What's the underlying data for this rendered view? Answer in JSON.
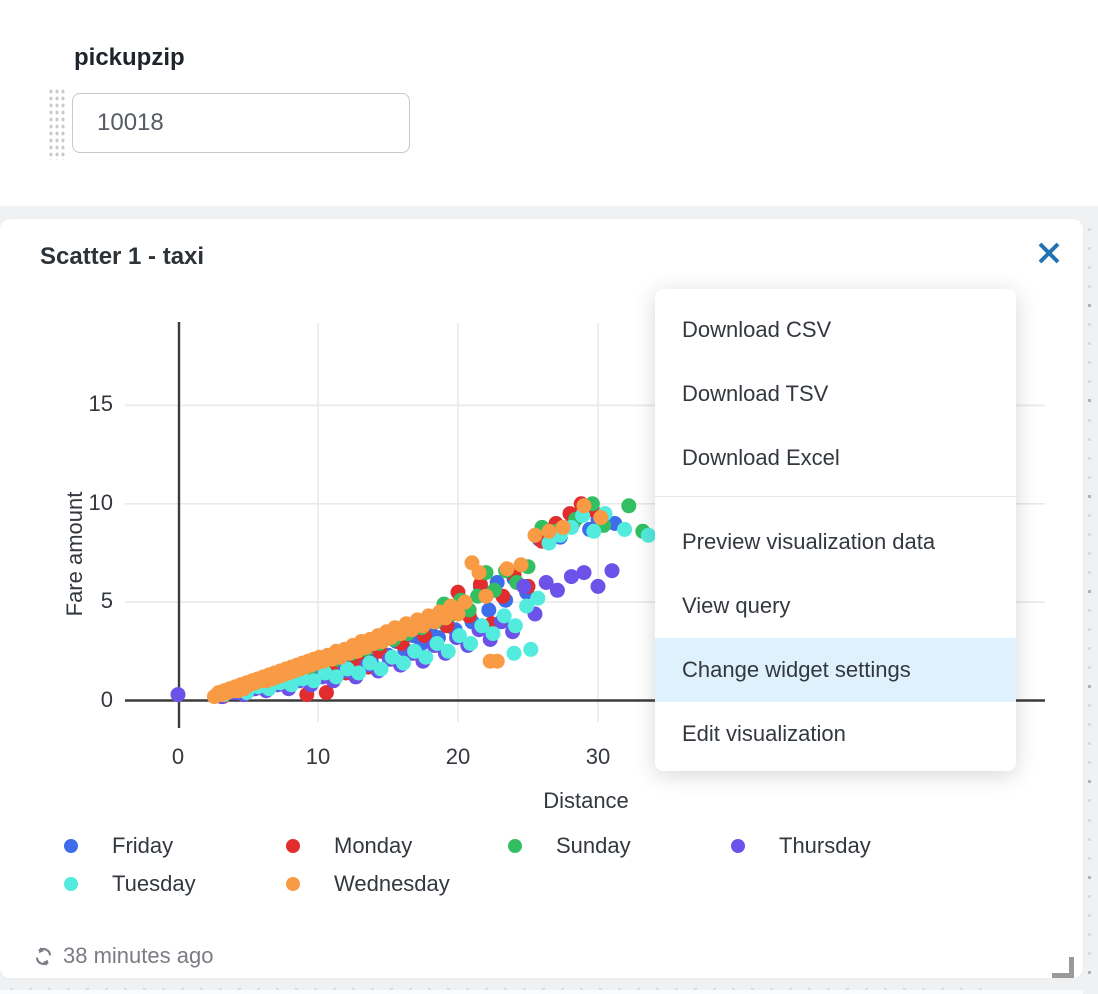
{
  "parameters": {
    "label": "pickupzip",
    "value": "10018"
  },
  "widget": {
    "title": "Scatter 1 - taxi",
    "refresh_status": "38 minutes ago",
    "accent_color": "#2272B4"
  },
  "menu": {
    "highlight_color": "#DFF1FC",
    "divider_after_index": 2,
    "items": [
      {
        "label": "Download CSV",
        "highlighted": false
      },
      {
        "label": "Download TSV",
        "highlighted": false
      },
      {
        "label": "Download Excel",
        "highlighted": false
      },
      {
        "label": "Preview visualization data",
        "highlighted": false
      },
      {
        "label": "View query",
        "highlighted": false
      },
      {
        "label": "Change widget settings",
        "highlighted": true
      },
      {
        "label": "Edit visualization",
        "highlighted": false
      }
    ]
  },
  "chart_data": {
    "type": "scatter",
    "title": "Scatter 1 - taxi",
    "xlabel": "Distance",
    "ylabel": "Fare amount",
    "xticks": [
      0,
      10,
      20,
      30
    ],
    "yticks": [
      0,
      5,
      10,
      15
    ],
    "xlim": [
      -2,
      62
    ],
    "ylim": [
      -1.4,
      19.2
    ],
    "grid": true,
    "legend_position": "bottom",
    "series": [
      {
        "name": "Friday",
        "color": "#3D6DEB",
        "points": [
          [
            3.0,
            0.3
          ],
          [
            3.6,
            0.5
          ],
          [
            4.2,
            0.4
          ],
          [
            4.8,
            0.7
          ],
          [
            5.4,
            0.6
          ],
          [
            6.0,
            0.9
          ],
          [
            6.6,
            0.8
          ],
          [
            7.2,
            1.1
          ],
          [
            7.8,
            0.9
          ],
          [
            8.4,
            1.3
          ],
          [
            9.0,
            1.1
          ],
          [
            9.6,
            1.5
          ],
          [
            10.2,
            1.3
          ],
          [
            10.8,
            1.8
          ],
          [
            11.4,
            1.5
          ],
          [
            12.0,
            2.1
          ],
          [
            12.6,
            1.8
          ],
          [
            13.2,
            2.4
          ],
          [
            13.8,
            2.0
          ],
          [
            14.4,
            2.7
          ],
          [
            15.0,
            2.3
          ],
          [
            15.6,
            3.0
          ],
          [
            16.2,
            2.6
          ],
          [
            16.8,
            3.3
          ],
          [
            17.4,
            2.9
          ],
          [
            18.0,
            3.7
          ],
          [
            18.6,
            3.2
          ],
          [
            19.2,
            4.1
          ],
          [
            19.8,
            3.6
          ],
          [
            20.4,
            4.5
          ],
          [
            21.0,
            4.0
          ],
          [
            21.6,
            5.8
          ],
          [
            22.2,
            4.6
          ],
          [
            22.8,
            6.0
          ],
          [
            23.4,
            5.1
          ],
          [
            24.0,
            6.2
          ],
          [
            24.9,
            5.5
          ],
          [
            25.8,
            8.2
          ],
          [
            26.4,
            8.5
          ],
          [
            27.3,
            8.3
          ],
          [
            28.2,
            9.0
          ],
          [
            29.4,
            8.7
          ],
          [
            30.0,
            9.2
          ],
          [
            31.2,
            9.0
          ]
        ]
      },
      {
        "name": "Monday",
        "color": "#E12D2D",
        "points": [
          [
            3.2,
            0.2
          ],
          [
            4.0,
            0.5
          ],
          [
            4.8,
            0.4
          ],
          [
            5.6,
            0.8
          ],
          [
            6.4,
            0.6
          ],
          [
            7.2,
            1.0
          ],
          [
            8.0,
            0.8
          ],
          [
            8.8,
            1.2
          ],
          [
            9.2,
            0.3
          ],
          [
            9.6,
            1.0
          ],
          [
            10.6,
            0.4
          ],
          [
            11.2,
            1.7
          ],
          [
            12.0,
            1.4
          ],
          [
            12.8,
            2.1
          ],
          [
            13.6,
            1.7
          ],
          [
            14.4,
            2.5
          ],
          [
            15.2,
            2.1
          ],
          [
            16.0,
            2.9
          ],
          [
            16.8,
            2.4
          ],
          [
            17.6,
            3.3
          ],
          [
            18.4,
            2.8
          ],
          [
            19.2,
            3.8
          ],
          [
            20.0,
            5.5
          ],
          [
            20.8,
            4.3
          ],
          [
            21.6,
            5.9
          ],
          [
            22.4,
            3.9
          ],
          [
            23.2,
            5.3
          ],
          [
            24.0,
            6.4
          ],
          [
            25.0,
            5.8
          ],
          [
            26.0,
            8.1
          ],
          [
            27.0,
            9.0
          ],
          [
            28.0,
            9.5
          ],
          [
            28.8,
            10.0
          ],
          [
            29.6,
            9.7
          ]
        ]
      },
      {
        "name": "Sunday",
        "color": "#32BF61",
        "points": [
          [
            3.4,
            0.4
          ],
          [
            4.4,
            0.6
          ],
          [
            5.4,
            0.8
          ],
          [
            6.4,
            1.0
          ],
          [
            7.4,
            1.2
          ],
          [
            8.4,
            1.4
          ],
          [
            9.4,
            1.6
          ],
          [
            10.4,
            1.9
          ],
          [
            11.4,
            2.1
          ],
          [
            12.4,
            2.4
          ],
          [
            13.4,
            2.6
          ],
          [
            14.4,
            2.9
          ],
          [
            15.4,
            3.1
          ],
          [
            16.4,
            3.4
          ],
          [
            17.4,
            3.7
          ],
          [
            18.4,
            4.0
          ],
          [
            19.0,
            4.9
          ],
          [
            19.6,
            4.4
          ],
          [
            20.2,
            5.1
          ],
          [
            20.8,
            4.6
          ],
          [
            21.4,
            5.3
          ],
          [
            22.0,
            6.5
          ],
          [
            22.6,
            5.6
          ],
          [
            23.4,
            6.6
          ],
          [
            24.2,
            6.0
          ],
          [
            25.0,
            6.8
          ],
          [
            26.0,
            8.8
          ],
          [
            27.0,
            8.6
          ],
          [
            28.4,
            9.2
          ],
          [
            29.6,
            10.0
          ],
          [
            30.4,
            8.9
          ],
          [
            32.2,
            9.9
          ],
          [
            33.2,
            8.6
          ]
        ]
      },
      {
        "name": "Thursday",
        "color": "#6C52E9",
        "points": [
          [
            0.0,
            0.3
          ],
          [
            3.1,
            0.2
          ],
          [
            3.9,
            0.4
          ],
          [
            4.7,
            0.3
          ],
          [
            5.5,
            0.6
          ],
          [
            6.3,
            0.5
          ],
          [
            7.1,
            0.8
          ],
          [
            7.9,
            0.6
          ],
          [
            8.7,
            1.0
          ],
          [
            9.5,
            0.8
          ],
          [
            10.3,
            1.2
          ],
          [
            11.1,
            1.0
          ],
          [
            11.9,
            1.5
          ],
          [
            12.7,
            1.2
          ],
          [
            13.5,
            1.8
          ],
          [
            14.3,
            1.5
          ],
          [
            15.1,
            2.1
          ],
          [
            15.9,
            1.8
          ],
          [
            16.7,
            2.4
          ],
          [
            17.5,
            2.0
          ],
          [
            18.3,
            2.8
          ],
          [
            19.1,
            2.4
          ],
          [
            19.9,
            3.2
          ],
          [
            20.7,
            2.8
          ],
          [
            21.5,
            3.6
          ],
          [
            22.3,
            3.1
          ],
          [
            23.1,
            4.0
          ],
          [
            23.9,
            3.5
          ],
          [
            24.7,
            5.8
          ],
          [
            25.5,
            4.4
          ],
          [
            26.3,
            6.0
          ],
          [
            27.1,
            5.6
          ],
          [
            28.1,
            6.3
          ],
          [
            29.0,
            6.5
          ],
          [
            30.0,
            5.8
          ],
          [
            31.0,
            6.6
          ]
        ]
      },
      {
        "name": "Tuesday",
        "color": "#52EBDE",
        "points": [
          [
            3.3,
            0.3
          ],
          [
            4.1,
            0.5
          ],
          [
            4.9,
            0.4
          ],
          [
            5.7,
            0.7
          ],
          [
            6.5,
            0.6
          ],
          [
            7.3,
            0.9
          ],
          [
            8.1,
            0.8
          ],
          [
            8.9,
            1.1
          ],
          [
            9.7,
            1.0
          ],
          [
            10.5,
            1.4
          ],
          [
            11.3,
            1.2
          ],
          [
            12.1,
            1.6
          ],
          [
            12.9,
            1.4
          ],
          [
            13.7,
            1.9
          ],
          [
            14.5,
            1.6
          ],
          [
            15.3,
            2.2
          ],
          [
            16.1,
            1.9
          ],
          [
            16.9,
            2.5
          ],
          [
            17.7,
            2.2
          ],
          [
            18.5,
            2.9
          ],
          [
            19.3,
            2.5
          ],
          [
            20.1,
            3.3
          ],
          [
            20.9,
            2.9
          ],
          [
            21.7,
            3.8
          ],
          [
            22.5,
            3.4
          ],
          [
            23.3,
            4.3
          ],
          [
            24.0,
            2.4
          ],
          [
            24.1,
            3.8
          ],
          [
            24.9,
            4.8
          ],
          [
            25.2,
            2.6
          ],
          [
            25.7,
            5.2
          ],
          [
            26.5,
            8.0
          ],
          [
            27.3,
            8.4
          ],
          [
            28.1,
            8.8
          ],
          [
            28.9,
            9.4
          ],
          [
            29.7,
            8.6
          ],
          [
            30.5,
            9.5
          ],
          [
            31.9,
            8.7
          ],
          [
            33.6,
            8.4
          ]
        ]
      },
      {
        "name": "Wednesday",
        "color": "#F99B45",
        "points": [
          [
            2.6,
            0.2
          ],
          [
            2.9,
            0.4
          ],
          [
            3.1,
            0.3
          ],
          [
            3.3,
            0.5
          ],
          [
            3.5,
            0.4
          ],
          [
            3.7,
            0.6
          ],
          [
            3.9,
            0.5
          ],
          [
            4.1,
            0.7
          ],
          [
            4.3,
            0.5
          ],
          [
            4.5,
            0.8
          ],
          [
            4.7,
            0.6
          ],
          [
            4.9,
            0.9
          ],
          [
            5.1,
            0.8
          ],
          [
            5.3,
            1.0
          ],
          [
            5.5,
            0.9
          ],
          [
            5.7,
            1.1
          ],
          [
            5.9,
            1.0
          ],
          [
            6.1,
            1.2
          ],
          [
            6.3,
            1.0
          ],
          [
            6.5,
            1.3
          ],
          [
            6.7,
            1.1
          ],
          [
            6.9,
            1.4
          ],
          [
            7.1,
            1.2
          ],
          [
            7.3,
            1.5
          ],
          [
            7.5,
            1.3
          ],
          [
            7.7,
            1.6
          ],
          [
            7.9,
            1.4
          ],
          [
            8.1,
            1.7
          ],
          [
            8.3,
            1.5
          ],
          [
            8.5,
            1.8
          ],
          [
            8.7,
            1.6
          ],
          [
            8.9,
            1.9
          ],
          [
            9.1,
            1.7
          ],
          [
            9.3,
            2.0
          ],
          [
            9.5,
            1.8
          ],
          [
            9.7,
            2.1
          ],
          [
            9.9,
            1.9
          ],
          [
            10.1,
            2.2
          ],
          [
            10.4,
            2.0
          ],
          [
            10.7,
            2.3
          ],
          [
            11.0,
            2.1
          ],
          [
            11.3,
            2.5
          ],
          [
            11.6,
            2.2
          ],
          [
            11.9,
            2.6
          ],
          [
            12.2,
            2.4
          ],
          [
            12.5,
            2.8
          ],
          [
            12.8,
            2.5
          ],
          [
            13.1,
            3.0
          ],
          [
            13.4,
            2.7
          ],
          [
            13.7,
            3.1
          ],
          [
            14.0,
            2.9
          ],
          [
            14.3,
            3.3
          ],
          [
            14.6,
            3.0
          ],
          [
            14.9,
            3.5
          ],
          [
            15.2,
            3.2
          ],
          [
            15.5,
            3.7
          ],
          [
            15.9,
            3.4
          ],
          [
            16.3,
            3.9
          ],
          [
            16.7,
            3.6
          ],
          [
            17.1,
            4.1
          ],
          [
            17.5,
            3.8
          ],
          [
            17.9,
            4.3
          ],
          [
            18.3,
            4.0
          ],
          [
            18.7,
            4.5
          ],
          [
            19.1,
            4.2
          ],
          [
            19.5,
            4.8
          ],
          [
            20.0,
            4.4
          ],
          [
            20.5,
            5.0
          ],
          [
            21.0,
            7.0
          ],
          [
            21.5,
            6.5
          ],
          [
            22.0,
            5.3
          ],
          [
            22.3,
            2.0
          ],
          [
            22.8,
            2.0
          ],
          [
            23.5,
            6.7
          ],
          [
            24.5,
            6.9
          ],
          [
            25.5,
            8.4
          ],
          [
            26.5,
            8.6
          ],
          [
            27.5,
            8.8
          ],
          [
            29.0,
            9.9
          ],
          [
            30.2,
            9.3
          ]
        ]
      }
    ]
  }
}
